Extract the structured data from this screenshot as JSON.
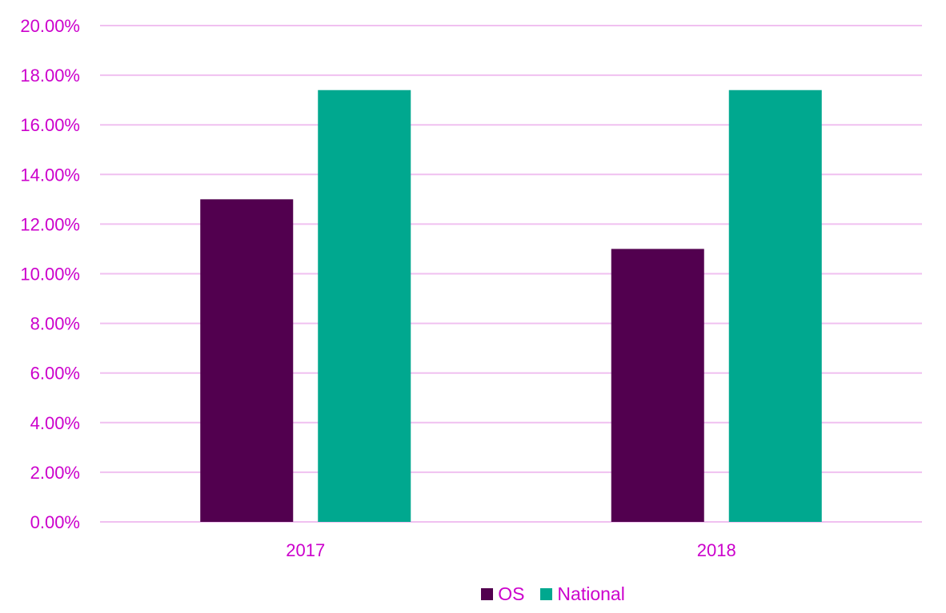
{
  "chart_data": {
    "type": "bar",
    "title": "",
    "xlabel": "",
    "ylabel": "",
    "categories": [
      "2017",
      "2018"
    ],
    "series": [
      {
        "name": "OS",
        "values": [
          0.13,
          0.11
        ],
        "color": "#52004f"
      },
      {
        "name": "National",
        "values": [
          0.174,
          0.174
        ],
        "color": "#00a88f"
      }
    ],
    "ylim": [
      0,
      0.2
    ],
    "yticks": [
      0,
      0.02,
      0.04,
      0.06,
      0.08,
      0.1,
      0.12,
      0.14,
      0.16,
      0.18,
      0.2
    ],
    "ytick_labels": [
      "0.00%",
      "2.00%",
      "4.00%",
      "6.00%",
      "8.00%",
      "10.00%",
      "12.00%",
      "14.00%",
      "16.00%",
      "18.00%",
      "20.00%"
    ],
    "grid": true,
    "legend_position": "bottom",
    "colors": {
      "text": "#cc00cc",
      "grid": "#f0c0f0"
    }
  }
}
